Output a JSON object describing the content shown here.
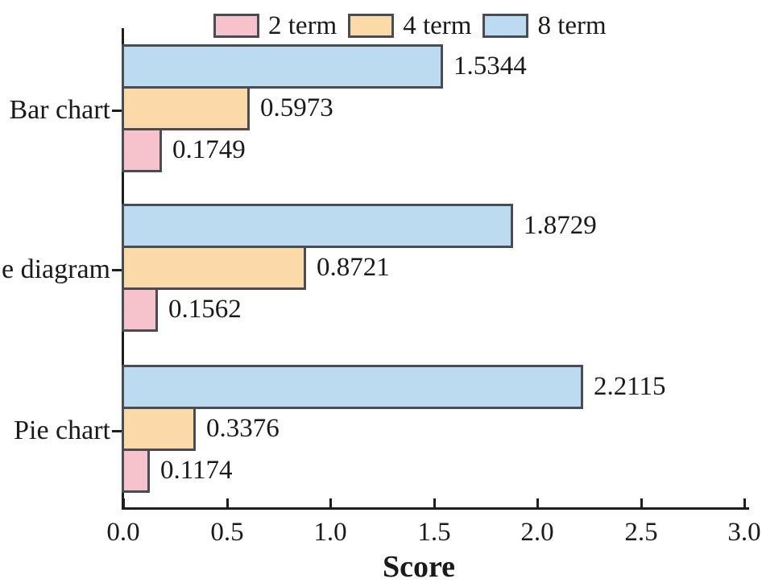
{
  "chart_data": {
    "type": "bar",
    "orientation": "horizontal",
    "title": "",
    "xlabel": "Score",
    "ylabel": "",
    "categories": [
      "Bar chart",
      "e diagram",
      "Pie chart"
    ],
    "series": [
      {
        "name": "2 term",
        "color": "#f6c3cc",
        "values": [
          0.1749,
          0.1562,
          0.1174
        ],
        "value_labels": [
          "0.1749",
          "0.1562",
          "0.1174"
        ]
      },
      {
        "name": "4 term",
        "color": "#fbd9a9",
        "values": [
          0.5973,
          0.8721,
          0.3376
        ],
        "value_labels": [
          "0.5973",
          "0.8721",
          "0.3376"
        ]
      },
      {
        "name": "8 term",
        "color": "#bcdaf0",
        "values": [
          1.5344,
          1.8729,
          2.2115
        ],
        "value_labels": [
          "1.5344",
          "1.8729",
          "2.2115"
        ]
      }
    ],
    "bar_draw_order_top_to_bottom": [
      "8 term",
      "4 term",
      "2 term"
    ],
    "xlim": [
      0.0,
      3.0
    ],
    "x_ticks": [
      "0.0",
      "0.5",
      "1.0",
      "1.5",
      "2.0",
      "2.5",
      "3.0"
    ],
    "legend_position": "top",
    "grid": false
  },
  "colors": {
    "bar_edge": "#474c55",
    "axis": "#1e1e1e",
    "text": "#1a1a1a",
    "background": "#ffffff"
  }
}
